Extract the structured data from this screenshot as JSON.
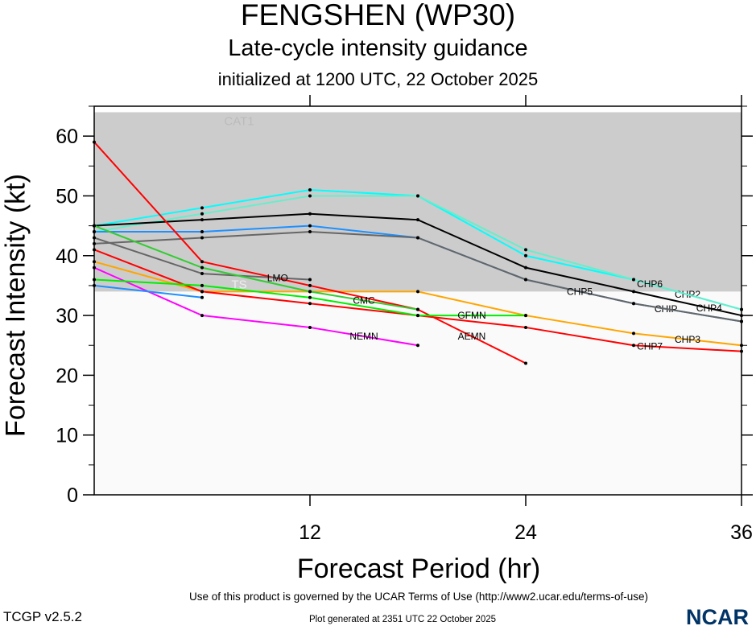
{
  "header": {
    "title": "FENGSHEN (WP30)",
    "subtitle": "Late-cycle intensity guidance",
    "init": "initialized at 1200 UTC, 22 October 2025"
  },
  "footer": {
    "version": "TCGP v2.5.2",
    "terms": "Use of this product is governed by the UCAR Terms of Use (http://www2.ucar.edu/terms-of-use)",
    "generated": "Plot generated at 2351 UTC   22 October 2025",
    "logo": "NCAR"
  },
  "chart_data": {
    "type": "line",
    "xlabel": "Forecast Period (hr)",
    "ylabel": "Forecast Intensity (kt)",
    "xlim": [
      0,
      36
    ],
    "ylim": [
      0,
      65
    ],
    "xticks": [
      12,
      24,
      36
    ],
    "yticks": [
      0,
      10,
      20,
      30,
      40,
      50,
      60
    ],
    "x": [
      0,
      6,
      12,
      18,
      24,
      30,
      36
    ],
    "bands": [
      {
        "label": "TS",
        "from": 34,
        "to": 64,
        "color": "#cccccc"
      },
      {
        "label": "CAT1",
        "from": 64,
        "to": 65,
        "color": "#ffffff"
      }
    ],
    "below_color": "#fafafa",
    "series": [
      {
        "name": "CHP2",
        "color": "#00ffff",
        "values": [
          45,
          48,
          51,
          50,
          40,
          36,
          31
        ]
      },
      {
        "name": "CHP6",
        "color": "#66eecc",
        "values": [
          44,
          47,
          50,
          50,
          41,
          36,
          31
        ]
      },
      {
        "name": "CHP4",
        "color": "#000000",
        "values": [
          45,
          46,
          47,
          46,
          38,
          34,
          30
        ]
      },
      {
        "name": "CHIP",
        "color": "#1e90ff",
        "values": [
          44,
          44,
          45,
          43,
          36,
          32,
          29
        ]
      },
      {
        "name": "CHP5",
        "color": "#666666",
        "values": [
          42,
          43,
          44,
          43,
          36,
          32,
          29
        ]
      },
      {
        "name": "CHP3",
        "color": "#ffa500",
        "values": [
          39,
          34,
          34,
          34,
          30,
          27,
          25
        ]
      },
      {
        "name": "CHP7",
        "color": "#ff0000",
        "values": [
          41,
          34,
          32,
          30,
          28,
          25,
          24
        ]
      },
      {
        "name": "AEMN",
        "color": "#ff0000",
        "values": [
          59,
          39,
          35,
          31,
          22,
          null,
          null
        ]
      },
      {
        "name": "NEMN",
        "color": "#ff00ff",
        "values": [
          38,
          30,
          28,
          25,
          null,
          null,
          null
        ]
      },
      {
        "name": "LMO",
        "color": "#666666",
        "values": [
          43,
          37,
          36,
          null,
          null,
          null,
          null
        ]
      },
      {
        "name": "CMC",
        "color": "#33cc33",
        "values": [
          45,
          38,
          34,
          31,
          null,
          null,
          null
        ]
      },
      {
        "name": "GFMN",
        "color": "#00ee00",
        "values": [
          36,
          35,
          33,
          30,
          30,
          null,
          null
        ]
      },
      {
        "name": "",
        "color": "#1e90ff",
        "values": [
          35,
          33,
          null,
          null,
          null,
          null,
          null
        ]
      }
    ]
  }
}
